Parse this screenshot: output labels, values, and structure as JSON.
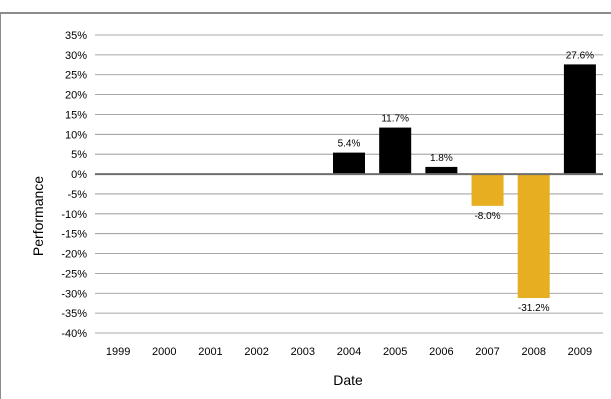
{
  "chart_data": {
    "type": "bar",
    "title": "",
    "xlabel": "Date",
    "ylabel": "Performance",
    "categories": [
      "1999",
      "2000",
      "2001",
      "2002",
      "2003",
      "2004",
      "2005",
      "2006",
      "2007",
      "2008",
      "2009"
    ],
    "values": [
      null,
      null,
      null,
      null,
      null,
      5.4,
      11.7,
      1.8,
      -8.0,
      -31.2,
      27.6
    ],
    "data_labels": [
      null,
      null,
      null,
      null,
      null,
      "5.4%",
      "11.7%",
      "1.8%",
      "-8.0%",
      "-31.2%",
      "27.6%"
    ],
    "ylim": [
      -40,
      35
    ],
    "yticks": [
      35,
      30,
      25,
      20,
      15,
      10,
      5,
      0,
      -5,
      -10,
      -15,
      -20,
      -25,
      -30,
      -35,
      -40
    ],
    "ytick_labels": [
      "35%",
      "30%",
      "25%",
      "20%",
      "15%",
      "10%",
      "5%",
      "0%",
      "-5%",
      "-10%",
      "-15%",
      "-20%",
      "-25%",
      "-30%",
      "-35%",
      "-40%"
    ],
    "grid": true,
    "legend": "none",
    "colors": {
      "positive": "#000000",
      "negative": "#E8AE22",
      "grid": "#8c8c8c",
      "zero_line": "#6e6e6e"
    }
  }
}
